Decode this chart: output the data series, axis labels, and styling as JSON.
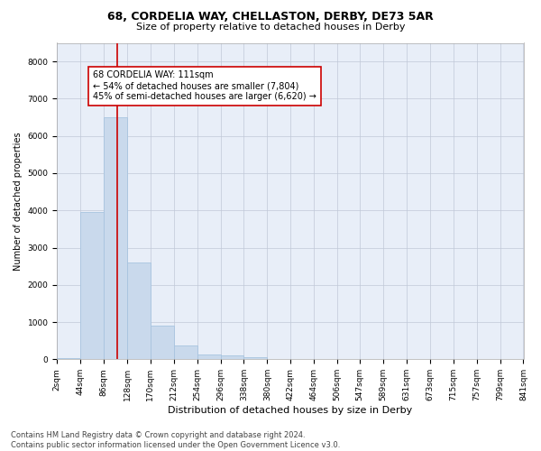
{
  "title1": "68, CORDELIA WAY, CHELLASTON, DERBY, DE73 5AR",
  "title2": "Size of property relative to detached houses in Derby",
  "xlabel": "Distribution of detached houses by size in Derby",
  "ylabel": "Number of detached properties",
  "bar_color": "#c9d9ec",
  "bar_edge_color": "#a8c4e0",
  "grid_color": "#c0c8d8",
  "background_color": "#e8eef8",
  "vline_x": 111,
  "vline_color": "#cc0000",
  "annotation_text": "68 CORDELIA WAY: 111sqm\n← 54% of detached houses are smaller (7,804)\n45% of semi-detached houses are larger (6,620) →",
  "annotation_box_color": "white",
  "annotation_edge_color": "#cc0000",
  "bins_left": [
    2,
    44,
    86,
    128,
    170,
    212,
    254,
    296,
    338,
    380,
    422,
    464,
    506,
    547,
    589,
    631,
    673,
    715,
    757,
    799
  ],
  "bin_width": 42,
  "bin_values": [
    25,
    3950,
    6500,
    2600,
    900,
    360,
    130,
    100,
    50,
    0,
    0,
    0,
    0,
    0,
    0,
    0,
    0,
    0,
    0,
    0
  ],
  "ylim": [
    0,
    8500
  ],
  "yticks": [
    0,
    1000,
    2000,
    3000,
    4000,
    5000,
    6000,
    7000,
    8000
  ],
  "xtick_labels": [
    "2sqm",
    "44sqm",
    "86sqm",
    "128sqm",
    "170sqm",
    "212sqm",
    "254sqm",
    "296sqm",
    "338sqm",
    "380sqm",
    "422sqm",
    "464sqm",
    "506sqm",
    "547sqm",
    "589sqm",
    "631sqm",
    "673sqm",
    "715sqm",
    "757sqm",
    "799sqm",
    "841sqm"
  ],
  "footnote": "Contains HM Land Registry data © Crown copyright and database right 2024.\nContains public sector information licensed under the Open Government Licence v3.0.",
  "title1_fontsize": 9,
  "title2_fontsize": 8,
  "xlabel_fontsize": 8,
  "ylabel_fontsize": 7,
  "tick_fontsize": 6.5,
  "annotation_fontsize": 7,
  "footnote_fontsize": 6
}
